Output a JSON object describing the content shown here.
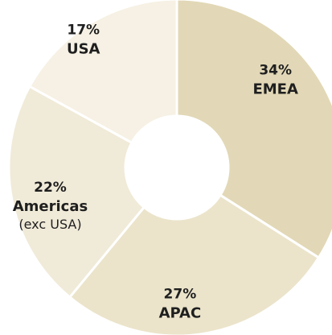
{
  "chart_data": {
    "type": "pie",
    "style": "donut",
    "title": "",
    "series": [
      {
        "values": [
          34,
          27,
          22,
          17
        ],
        "categories": [
          "EMEA",
          "APAC",
          "Americas",
          "USA"
        ]
      }
    ],
    "labels": [
      {
        "pct": "34%",
        "name": "EMEA",
        "note": ""
      },
      {
        "pct": "27%",
        "name": "APAC",
        "note": ""
      },
      {
        "pct": "22%",
        "name": "Americas",
        "note": "(exc USA)"
      },
      {
        "pct": "17%",
        "name": "USA",
        "note": ""
      }
    ],
    "colors": [
      "#e2d8b7",
      "#ebe4cb",
      "#f0ead8",
      "#f6f1e4"
    ],
    "separator_color": "#ffffff",
    "start_angle": "12 o'clock",
    "direction": "clockwise"
  }
}
